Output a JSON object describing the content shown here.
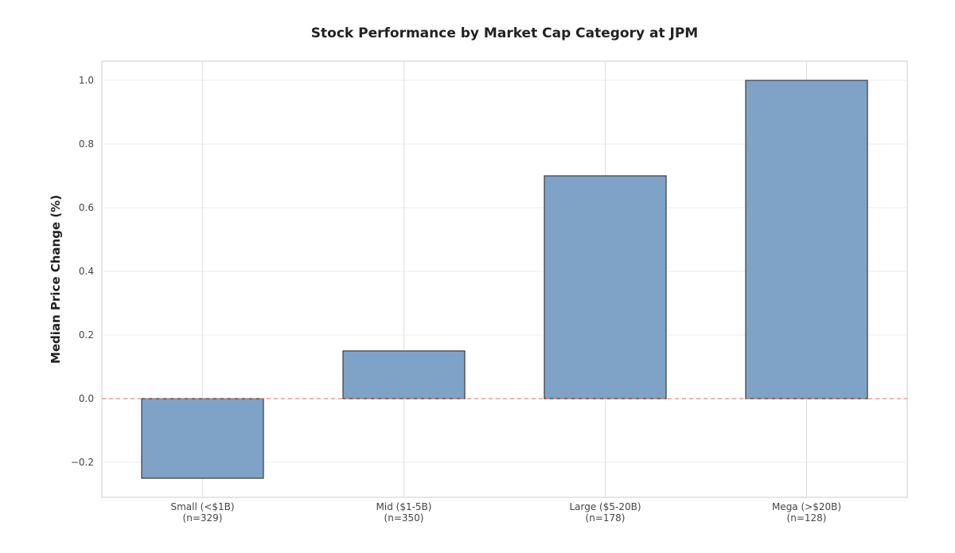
{
  "chart_data": {
    "type": "bar",
    "title": "Stock Performance by Market Cap Category at JPM",
    "xlabel": "",
    "ylabel": "Median Price Change (%)",
    "categories": [
      [
        "Small (<$1B)",
        "(n=329)"
      ],
      [
        "Mid ($1-5B)",
        "(n=350)"
      ],
      [
        "Large ($5-20B)",
        "(n=178)"
      ],
      [
        "Mega (>$20B)",
        "(n=128)"
      ]
    ],
    "values": [
      -0.25,
      0.15,
      0.7,
      1.0
    ],
    "ylim": [
      -0.31,
      1.06
    ],
    "yticks": [
      -0.2,
      0.0,
      0.2,
      0.4,
      0.6,
      0.8,
      1.0
    ],
    "ytick_labels": [
      "−0.2",
      "0.0",
      "0.2",
      "0.4",
      "0.6",
      "0.8",
      "1.0"
    ],
    "grid": true,
    "reference_line": {
      "y": 0,
      "style": "dashed",
      "color": "#e07060"
    },
    "bar_color": "#7fa3c7",
    "bar_edge_color": "#3a3a3a"
  }
}
